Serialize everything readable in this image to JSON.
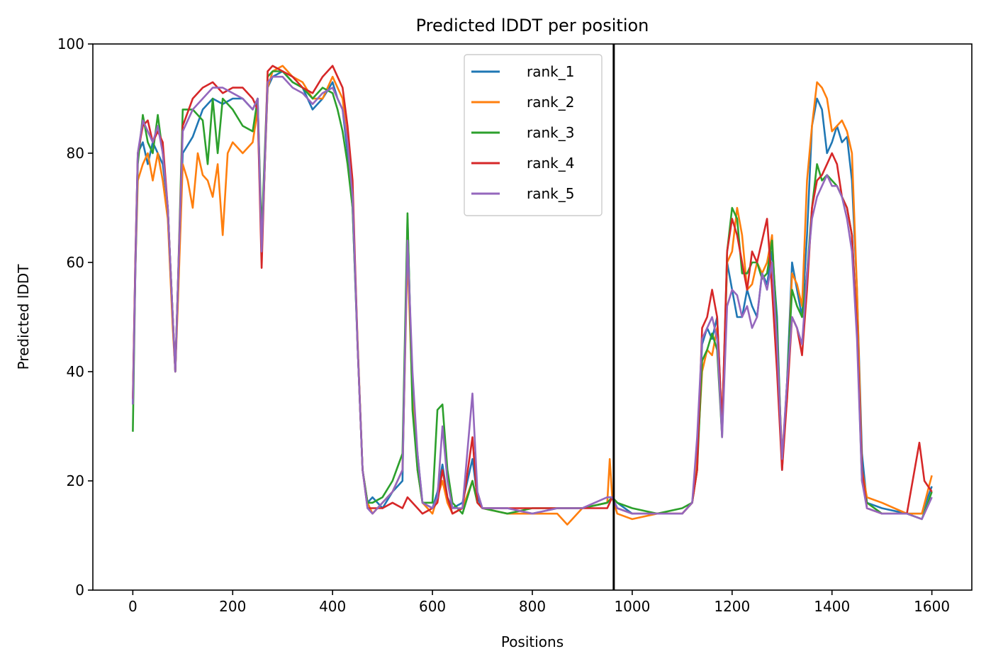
{
  "chart_data": {
    "type": "line",
    "title": "Predicted lDDT per position",
    "xlabel": "Positions",
    "ylabel": "Predicted lDDT",
    "xlim": [
      -80,
      1680
    ],
    "ylim": [
      0,
      100
    ],
    "xticks": [
      0,
      200,
      400,
      600,
      800,
      1000,
      1200,
      1400,
      1600
    ],
    "yticks": [
      0,
      20,
      40,
      60,
      80,
      100
    ],
    "grid": false,
    "legend_position": "top-center",
    "vline": {
      "x": 963,
      "color": "#000000"
    },
    "series": [
      {
        "name": "rank_1",
        "color": "#1f77b4",
        "x": [
          0,
          5,
          10,
          20,
          30,
          40,
          50,
          60,
          70,
          80,
          85,
          90,
          100,
          120,
          140,
          160,
          180,
          200,
          220,
          240,
          250,
          258,
          270,
          280,
          300,
          320,
          340,
          360,
          380,
          400,
          410,
          420,
          430,
          440,
          450,
          460,
          470,
          480,
          500,
          520,
          540,
          550,
          560,
          570,
          580,
          600,
          610,
          620,
          630,
          640,
          660,
          680,
          690,
          700,
          750,
          800,
          850,
          900,
          950,
          960,
          970,
          1000,
          1050,
          1100,
          1120,
          1130,
          1140,
          1150,
          1160,
          1170,
          1180,
          1190,
          1200,
          1210,
          1220,
          1230,
          1240,
          1250,
          1260,
          1270,
          1280,
          1290,
          1300,
          1310,
          1320,
          1330,
          1340,
          1350,
          1360,
          1370,
          1380,
          1390,
          1400,
          1410,
          1420,
          1430,
          1440,
          1450,
          1460,
          1470,
          1500,
          1550,
          1580,
          1600
        ],
        "y": [
          34,
          60,
          80,
          82,
          78,
          82,
          80,
          78,
          70,
          50,
          40,
          55,
          80,
          83,
          88,
          90,
          89,
          90,
          90,
          88,
          90,
          62,
          92,
          94,
          95,
          93,
          92,
          88,
          90,
          93,
          90,
          88,
          80,
          70,
          45,
          22,
          16,
          17,
          15,
          18,
          20,
          68,
          35,
          25,
          16,
          15,
          18,
          23,
          17,
          15,
          16,
          24,
          17,
          15,
          15,
          14,
          15,
          15,
          16,
          17,
          16,
          14,
          14,
          14,
          16,
          25,
          45,
          48,
          46,
          50,
          30,
          60,
          55,
          50,
          50,
          55,
          52,
          50,
          58,
          56,
          62,
          50,
          22,
          38,
          60,
          55,
          50,
          65,
          85,
          90,
          88,
          80,
          82,
          85,
          82,
          83,
          75,
          55,
          25,
          16,
          15,
          14,
          14,
          19
        ]
      },
      {
        "name": "rank_2",
        "color": "#ff7f0e",
        "x": [
          0,
          5,
          10,
          20,
          30,
          40,
          50,
          60,
          70,
          80,
          85,
          90,
          100,
          110,
          120,
          130,
          140,
          150,
          160,
          170,
          180,
          190,
          200,
          220,
          240,
          250,
          258,
          270,
          280,
          300,
          320,
          340,
          360,
          380,
          400,
          410,
          420,
          430,
          440,
          450,
          460,
          470,
          480,
          500,
          520,
          540,
          550,
          560,
          570,
          580,
          600,
          610,
          620,
          630,
          640,
          660,
          680,
          690,
          700,
          750,
          800,
          850,
          870,
          900,
          950,
          955,
          960,
          970,
          1000,
          1050,
          1100,
          1120,
          1130,
          1140,
          1150,
          1160,
          1170,
          1180,
          1190,
          1200,
          1210,
          1220,
          1230,
          1240,
          1250,
          1260,
          1270,
          1280,
          1290,
          1300,
          1310,
          1320,
          1330,
          1340,
          1350,
          1360,
          1370,
          1380,
          1390,
          1400,
          1410,
          1420,
          1430,
          1440,
          1450,
          1460,
          1470,
          1500,
          1550,
          1580,
          1600
        ],
        "y": [
          35,
          58,
          75,
          78,
          80,
          75,
          80,
          75,
          68,
          48,
          40,
          52,
          78,
          75,
          70,
          80,
          76,
          75,
          72,
          78,
          65,
          80,
          82,
          80,
          82,
          88,
          62,
          92,
          95,
          96,
          94,
          93,
          90,
          90,
          94,
          92,
          90,
          82,
          72,
          46,
          22,
          16,
          14,
          16,
          18,
          22,
          62,
          35,
          22,
          16,
          14,
          17,
          20,
          16,
          14,
          15,
          20,
          16,
          15,
          14,
          14,
          14,
          12,
          15,
          16,
          24,
          17,
          14,
          13,
          14,
          14,
          16,
          24,
          40,
          44,
          43,
          48,
          30,
          60,
          62,
          70,
          65,
          55,
          56,
          60,
          58,
          60,
          65,
          45,
          25,
          35,
          58,
          56,
          52,
          75,
          85,
          93,
          92,
          90,
          84,
          85,
          86,
          84,
          80,
          55,
          22,
          17,
          16,
          14,
          14,
          21
        ]
      },
      {
        "name": "rank_3",
        "color": "#2ca02c",
        "x": [
          0,
          5,
          10,
          20,
          30,
          40,
          50,
          60,
          70,
          80,
          85,
          90,
          100,
          120,
          140,
          150,
          160,
          170,
          180,
          200,
          220,
          240,
          250,
          258,
          270,
          280,
          300,
          320,
          340,
          360,
          380,
          400,
          410,
          420,
          430,
          440,
          450,
          460,
          470,
          480,
          500,
          520,
          540,
          550,
          560,
          570,
          580,
          600,
          610,
          620,
          630,
          640,
          660,
          680,
          690,
          700,
          750,
          800,
          850,
          900,
          950,
          960,
          970,
          1000,
          1050,
          1100,
          1120,
          1130,
          1140,
          1150,
          1160,
          1170,
          1180,
          1190,
          1200,
          1210,
          1220,
          1230,
          1240,
          1250,
          1260,
          1270,
          1280,
          1290,
          1300,
          1310,
          1320,
          1330,
          1340,
          1350,
          1360,
          1370,
          1380,
          1390,
          1400,
          1410,
          1420,
          1430,
          1440,
          1450,
          1460,
          1470,
          1500,
          1550,
          1580,
          1600
        ],
        "y": [
          29,
          58,
          78,
          87,
          82,
          80,
          87,
          80,
          70,
          50,
          40,
          55,
          88,
          88,
          86,
          78,
          90,
          80,
          90,
          88,
          85,
          84,
          90,
          65,
          94,
          95,
          95,
          93,
          92,
          90,
          92,
          91,
          88,
          84,
          78,
          70,
          45,
          22,
          16,
          16,
          17,
          20,
          25,
          69,
          33,
          22,
          16,
          16,
          33,
          34,
          22,
          16,
          14,
          20,
          16,
          15,
          14,
          15,
          15,
          15,
          16,
          17,
          16,
          15,
          14,
          15,
          16,
          22,
          42,
          44,
          47,
          44,
          28,
          62,
          70,
          68,
          58,
          58,
          60,
          60,
          57,
          58,
          64,
          48,
          23,
          38,
          55,
          52,
          50,
          58,
          70,
          78,
          75,
          76,
          75,
          74,
          72,
          70,
          65,
          48,
          20,
          16,
          14,
          14,
          13,
          18
        ]
      },
      {
        "name": "rank_4",
        "color": "#d62728",
        "x": [
          0,
          5,
          10,
          20,
          30,
          40,
          50,
          60,
          70,
          80,
          85,
          90,
          100,
          120,
          140,
          160,
          180,
          200,
          220,
          240,
          250,
          258,
          270,
          280,
          300,
          320,
          340,
          360,
          380,
          400,
          410,
          420,
          430,
          440,
          450,
          460,
          470,
          480,
          500,
          520,
          540,
          550,
          560,
          570,
          580,
          600,
          610,
          620,
          630,
          640,
          660,
          680,
          690,
          700,
          750,
          800,
          850,
          900,
          950,
          960,
          970,
          1000,
          1050,
          1100,
          1120,
          1130,
          1140,
          1150,
          1160,
          1170,
          1180,
          1190,
          1200,
          1210,
          1220,
          1230,
          1240,
          1250,
          1260,
          1270,
          1280,
          1290,
          1300,
          1310,
          1320,
          1330,
          1340,
          1350,
          1360,
          1370,
          1380,
          1390,
          1400,
          1410,
          1420,
          1430,
          1440,
          1450,
          1460,
          1470,
          1500,
          1550,
          1575,
          1585,
          1600
        ],
        "y": [
          35,
          60,
          80,
          85,
          86,
          82,
          84,
          82,
          70,
          50,
          40,
          55,
          85,
          90,
          92,
          93,
          91,
          92,
          92,
          90,
          88,
          59,
          95,
          96,
          95,
          94,
          92,
          91,
          94,
          96,
          94,
          92,
          85,
          75,
          45,
          22,
          15,
          15,
          15,
          16,
          15,
          17,
          16,
          15,
          14,
          15,
          16,
          22,
          17,
          14,
          15,
          28,
          16,
          15,
          15,
          15,
          15,
          15,
          15,
          17,
          15,
          14,
          14,
          14,
          16,
          22,
          48,
          50,
          55,
          50,
          30,
          62,
          68,
          65,
          60,
          55,
          62,
          60,
          64,
          68,
          55,
          40,
          22,
          35,
          50,
          48,
          43,
          55,
          70,
          75,
          76,
          78,
          80,
          78,
          72,
          70,
          65,
          48,
          22,
          15,
          14,
          14,
          27,
          20,
          18
        ]
      },
      {
        "name": "rank_5",
        "color": "#9467bd",
        "x": [
          0,
          5,
          10,
          20,
          30,
          40,
          50,
          60,
          70,
          80,
          85,
          90,
          100,
          120,
          140,
          160,
          180,
          200,
          220,
          240,
          250,
          258,
          270,
          280,
          300,
          320,
          340,
          360,
          380,
          400,
          410,
          420,
          430,
          440,
          450,
          460,
          470,
          480,
          500,
          520,
          540,
          550,
          560,
          570,
          580,
          600,
          610,
          620,
          630,
          640,
          660,
          680,
          690,
          700,
          750,
          800,
          850,
          900,
          950,
          960,
          970,
          1000,
          1050,
          1100,
          1120,
          1130,
          1140,
          1150,
          1160,
          1170,
          1180,
          1190,
          1200,
          1210,
          1220,
          1230,
          1240,
          1250,
          1260,
          1270,
          1280,
          1290,
          1300,
          1310,
          1320,
          1330,
          1340,
          1350,
          1360,
          1370,
          1380,
          1390,
          1400,
          1410,
          1420,
          1430,
          1440,
          1450,
          1460,
          1470,
          1500,
          1550,
          1580,
          1600
        ],
        "y": [
          34,
          58,
          80,
          86,
          84,
          82,
          85,
          80,
          70,
          50,
          40,
          55,
          84,
          88,
          90,
          92,
          92,
          91,
          90,
          88,
          90,
          62,
          93,
          94,
          94,
          92,
          91,
          89,
          91,
          92,
          90,
          88,
          82,
          72,
          45,
          22,
          15,
          14,
          16,
          18,
          22,
          64,
          40,
          25,
          16,
          15,
          17,
          30,
          20,
          15,
          15,
          36,
          18,
          15,
          15,
          14,
          15,
          15,
          17,
          17,
          15,
          14,
          14,
          14,
          16,
          28,
          46,
          48,
          50,
          46,
          28,
          52,
          55,
          54,
          50,
          52,
          48,
          50,
          58,
          55,
          60,
          45,
          24,
          38,
          50,
          48,
          45,
          58,
          68,
          72,
          74,
          76,
          74,
          74,
          72,
          68,
          62,
          46,
          20,
          15,
          14,
          14,
          13,
          17
        ]
      }
    ]
  }
}
